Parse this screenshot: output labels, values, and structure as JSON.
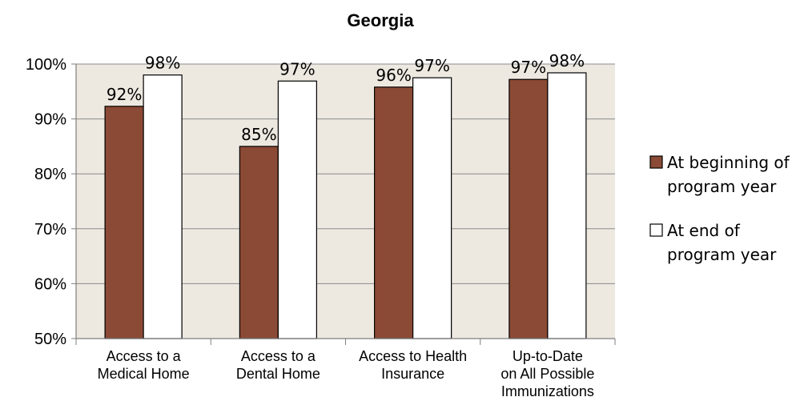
{
  "chart_data": {
    "type": "bar",
    "title": "Georgia",
    "categories": [
      [
        "Access to a",
        "Medical Home"
      ],
      [
        "Access to a",
        "Dental Home"
      ],
      [
        "Access to Health",
        "Insurance"
      ],
      [
        "Up-to-Date",
        "on All Possible",
        "Immunizations"
      ]
    ],
    "series": [
      {
        "name": [
          "At beginning of",
          "program year"
        ],
        "color": "#8B4A35",
        "values": [
          92.3,
          85.0,
          95.8,
          97.2
        ],
        "labels": [
          "92%",
          "85%",
          "96%",
          "97%"
        ]
      },
      {
        "name": [
          "At end of",
          "program year"
        ],
        "color": "#FFFFFF",
        "values": [
          98.0,
          96.9,
          97.5,
          98.4
        ],
        "labels": [
          "98%",
          "97%",
          "97%",
          "98%"
        ]
      }
    ],
    "ylim": [
      50,
      100
    ],
    "yticks": [
      "50%",
      "60%",
      "70%",
      "80%",
      "90%",
      "100%"
    ],
    "plot_background": "#EDE8E0",
    "grid": true,
    "legend": "right",
    "xlabel": "",
    "ylabel": ""
  }
}
